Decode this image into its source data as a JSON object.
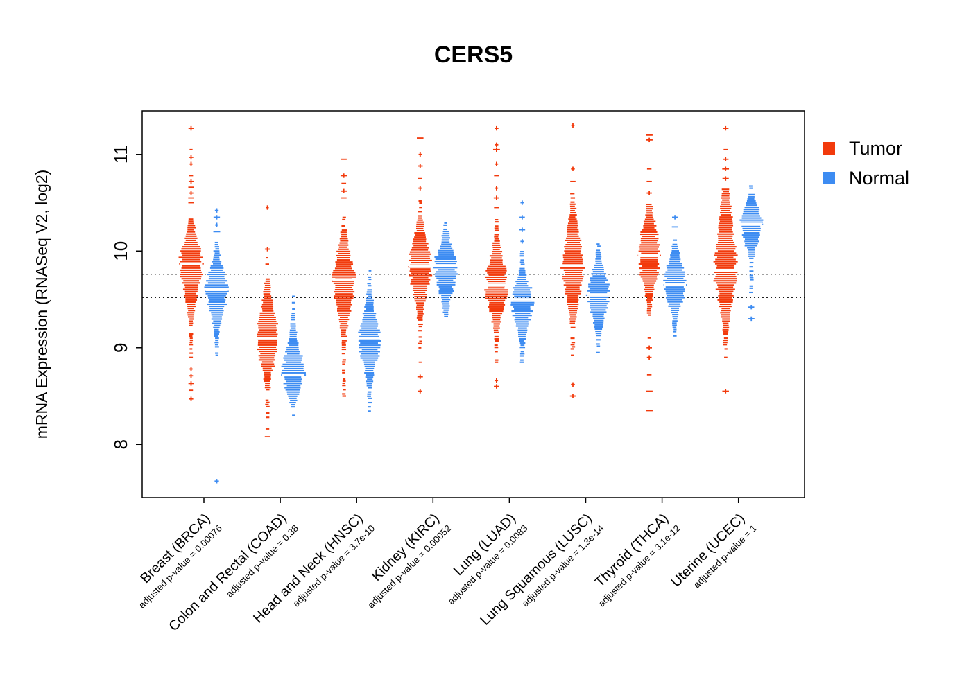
{
  "title": "CERS5",
  "legend": {
    "items": [
      {
        "key": "tumor",
        "label": "Tumor",
        "color": "#F23A0C"
      },
      {
        "key": "normal",
        "label": "Normal",
        "color": "#3D8CF2"
      }
    ]
  },
  "chart_data": {
    "type": "violin",
    "title": "CERS5",
    "ylabel": "mRNA Expression (RNASeq V2, log2)",
    "ylim": [
      7.45,
      11.45
    ],
    "yticks": [
      8,
      9,
      10,
      11
    ],
    "reference_lines": [
      9.76,
      9.52
    ],
    "grid": false,
    "legend_position": "right",
    "series": [
      "Tumor",
      "Normal"
    ],
    "series_colors": {
      "tumor": "#F23A0C",
      "normal": "#3D8CF2"
    },
    "groups": [
      {
        "label": "Breast (BRCA)",
        "pvalue_label": "adjusted p-value = 0.00076",
        "adjusted_p_value": 0.00076,
        "tumor": {
          "median": 9.87,
          "dense_low": 9.55,
          "dense_high": 10.12,
          "tail_low": 8.9,
          "tail_high": 10.45,
          "outliers_high": [
            10.5,
            10.55,
            10.6,
            10.66,
            10.72,
            10.78,
            10.9,
            10.97,
            11.05,
            11.27
          ],
          "outliers_low": [
            8.47,
            8.56,
            8.63,
            8.71,
            8.78
          ]
        },
        "normal": {
          "median": 9.6,
          "dense_low": 9.35,
          "dense_high": 9.82,
          "tail_low": 8.9,
          "tail_high": 10.12,
          "outliers_high": [
            10.2,
            10.27,
            10.35,
            10.42
          ],
          "outliers_low": [
            7.62
          ]
        }
      },
      {
        "label": "Colon and Rectal (COAD)",
        "pvalue_label": "adjusted p-value = 0.38",
        "adjusted_p_value": 0.38,
        "tumor": {
          "median": 9.1,
          "dense_low": 8.82,
          "dense_high": 9.42,
          "tail_low": 8.28,
          "tail_high": 9.95,
          "outliers_high": [
            10.02,
            10.45
          ],
          "outliers_low": [
            8.08,
            8.16
          ]
        },
        "normal": {
          "median": 8.72,
          "dense_low": 8.55,
          "dense_high": 9.0,
          "tail_low": 8.3,
          "tail_high": 9.55,
          "outliers_high": [],
          "outliers_low": []
        }
      },
      {
        "label": "Head and Neck (HNSC)",
        "pvalue_label": "adjusted p-value = 3.7e-10",
        "adjusted_p_value": 3.7e-10,
        "tumor": {
          "median": 9.7,
          "dense_low": 9.38,
          "dense_high": 9.98,
          "tail_low": 8.5,
          "tail_high": 10.45,
          "outliers_high": [
            10.55,
            10.62,
            10.7,
            10.78,
            10.95
          ],
          "outliers_low": []
        },
        "normal": {
          "median": 9.1,
          "dense_low": 8.82,
          "dense_high": 9.35,
          "tail_low": 8.3,
          "tail_high": 9.8,
          "outliers_high": [],
          "outliers_low": []
        }
      },
      {
        "label": "Kidney (KIRC)",
        "pvalue_label": "adjusted p-value = 0.00052",
        "adjusted_p_value": 0.00052,
        "tumor": {
          "median": 9.85,
          "dense_low": 9.55,
          "dense_high": 10.12,
          "tail_low": 9.0,
          "tail_high": 10.55,
          "outliers_high": [
            10.65,
            10.75,
            10.88,
            11.0,
            11.17
          ],
          "outliers_low": [
            8.55,
            8.7,
            8.85
          ]
        },
        "normal": {
          "median": 9.85,
          "dense_low": 9.58,
          "dense_high": 10.05,
          "tail_low": 9.3,
          "tail_high": 10.3,
          "outliers_high": [],
          "outliers_low": []
        }
      },
      {
        "label": "Lung (LUAD)",
        "pvalue_label": "adjusted p-value = 0.0083",
        "adjusted_p_value": 0.0083,
        "tumor": {
          "median": 9.65,
          "dense_low": 9.38,
          "dense_high": 9.92,
          "tail_low": 8.85,
          "tail_high": 10.35,
          "outliers_high": [
            10.45,
            10.55,
            10.65,
            10.78,
            10.9,
            11.05,
            11.1,
            11.27
          ],
          "outliers_low": [
            8.6,
            8.66
          ]
        },
        "normal": {
          "median": 9.5,
          "dense_low": 9.25,
          "dense_high": 9.68,
          "tail_low": 8.85,
          "tail_high": 10.0,
          "outliers_high": [
            10.1,
            10.22,
            10.35,
            10.5
          ],
          "outliers_low": []
        }
      },
      {
        "label": "Lung Squamous (LUSC)",
        "pvalue_label": "adjusted p-value = 1.3e-14",
        "adjusted_p_value": 1.3e-14,
        "tumor": {
          "median": 9.85,
          "dense_low": 9.52,
          "dense_high": 10.18,
          "tail_low": 8.9,
          "tail_high": 10.6,
          "outliers_high": [
            10.72,
            10.85,
            11.3
          ],
          "outliers_low": [
            8.5,
            8.62
          ]
        },
        "normal": {
          "median": 9.55,
          "dense_low": 9.32,
          "dense_high": 9.78,
          "tail_low": 8.95,
          "tail_high": 10.1,
          "outliers_high": [],
          "outliers_low": []
        }
      },
      {
        "label": "Thyroid (THCA)",
        "pvalue_label": "adjusted p-value = 3.1e-12",
        "adjusted_p_value": 3.1e-12,
        "tumor": {
          "median": 9.95,
          "dense_low": 9.68,
          "dense_high": 10.25,
          "tail_low": 9.25,
          "tail_high": 10.5,
          "outliers_high": [
            10.6,
            10.72,
            10.85,
            11.15,
            11.2
          ],
          "outliers_low": [
            8.35,
            8.55,
            8.72,
            8.9,
            9.0,
            9.1
          ]
        },
        "normal": {
          "median": 9.65,
          "dense_low": 9.45,
          "dense_high": 9.88,
          "tail_low": 9.1,
          "tail_high": 10.12,
          "outliers_high": [
            10.25,
            10.35
          ],
          "outliers_low": []
        }
      },
      {
        "label": "Uterine (UCEC)",
        "pvalue_label": "adjusted p-value = 1",
        "adjusted_p_value": 1,
        "tumor": {
          "median": 9.8,
          "dense_low": 9.45,
          "dense_high": 10.35,
          "tail_low": 8.9,
          "tail_high": 10.65,
          "outliers_high": [
            10.75,
            10.85,
            10.95,
            11.05,
            11.27
          ],
          "outliers_low": [
            8.55
          ]
        },
        "normal": {
          "median": 10.28,
          "dense_low": 10.08,
          "dense_high": 10.45,
          "tail_low": 9.55,
          "tail_high": 10.68,
          "outliers_high": [],
          "outliers_low": [
            9.3,
            9.42
          ]
        }
      }
    ]
  }
}
